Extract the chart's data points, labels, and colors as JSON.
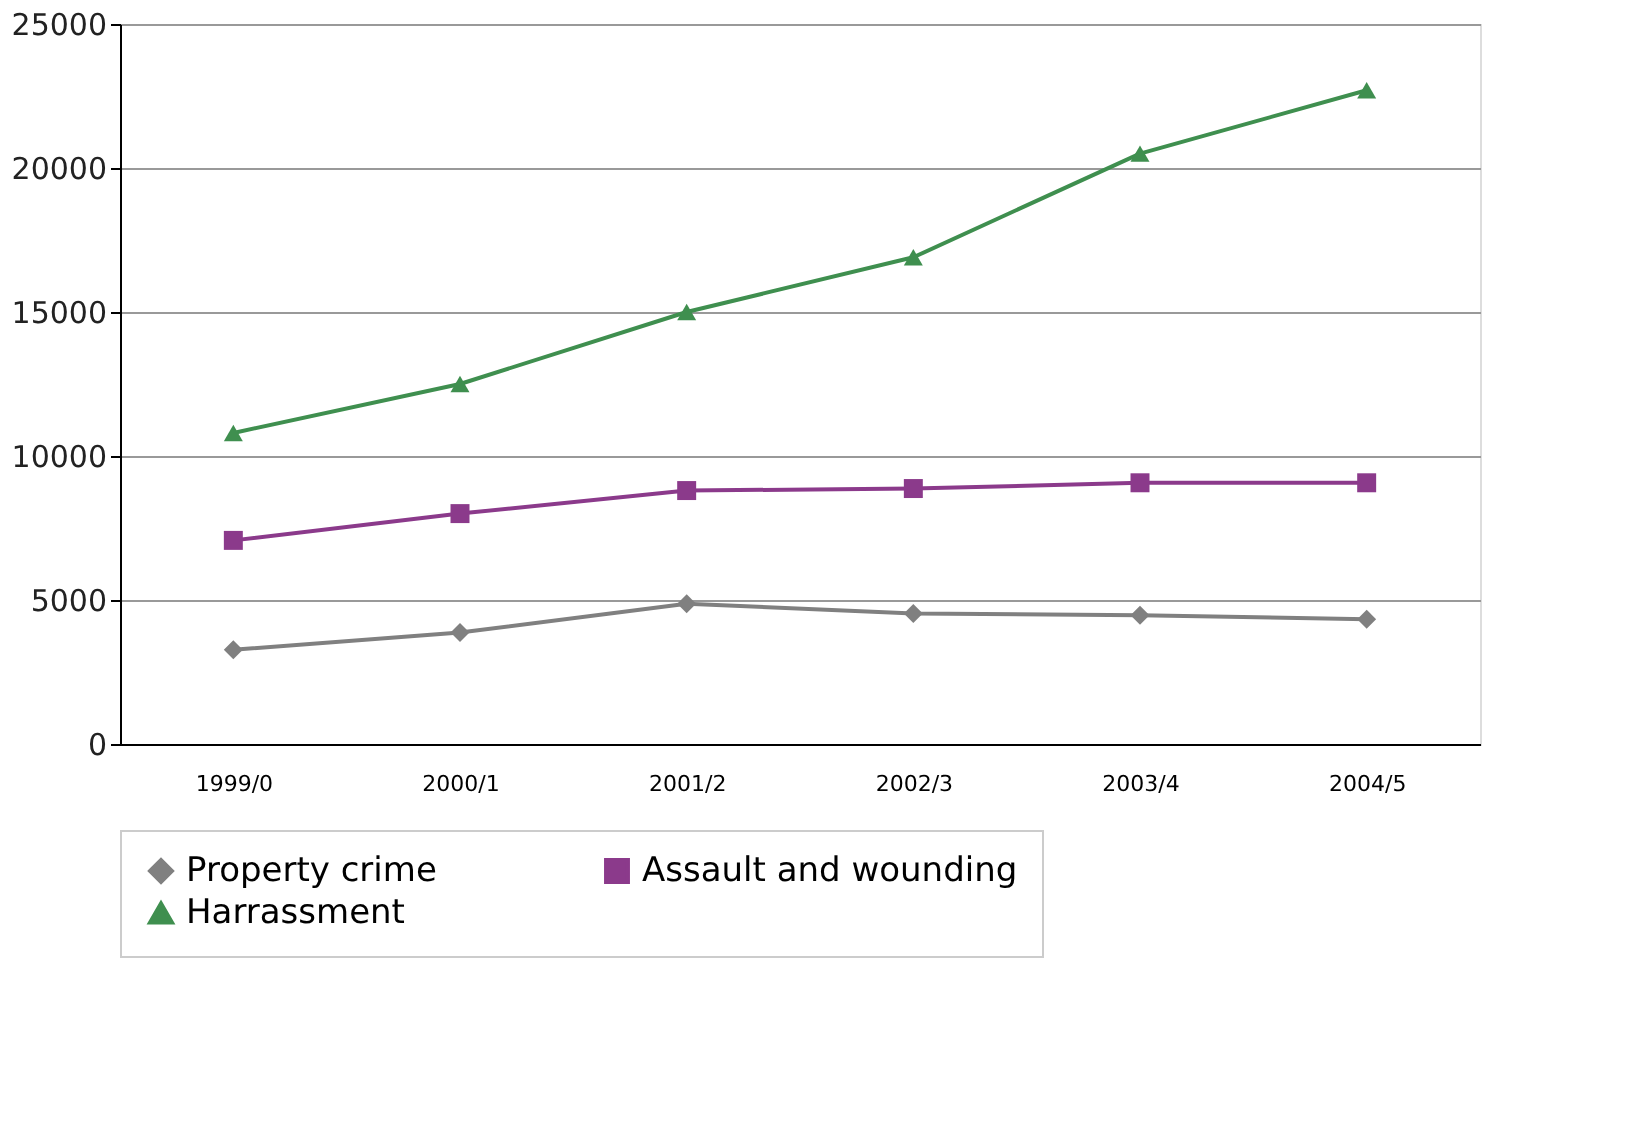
{
  "chart_data": {
    "type": "line",
    "categories": [
      "1999/0",
      "2000/1",
      "2001/2",
      "2002/3",
      "2003/4",
      "2004/5"
    ],
    "series": [
      {
        "name": "Property crime",
        "color": "#808080",
        "marker": "diamond",
        "values": [
          3270,
          3870,
          4870,
          4530,
          4470,
          4330
        ]
      },
      {
        "name": "Assault and wounding",
        "color": "#8b3a8b",
        "marker": "square",
        "values": [
          7070,
          8000,
          8800,
          8870,
          9070,
          9070
        ]
      },
      {
        "name": "Harrassment",
        "color": "#3f8f4f",
        "marker": "triangle",
        "values": [
          10800,
          12500,
          15000,
          16900,
          20500,
          22700
        ]
      }
    ],
    "ylim": [
      0,
      25000
    ],
    "yticks": [
      0,
      5000,
      10000,
      15000,
      20000,
      25000
    ],
    "grid": "y",
    "legend": "bottom",
    "line_style": "solid"
  }
}
